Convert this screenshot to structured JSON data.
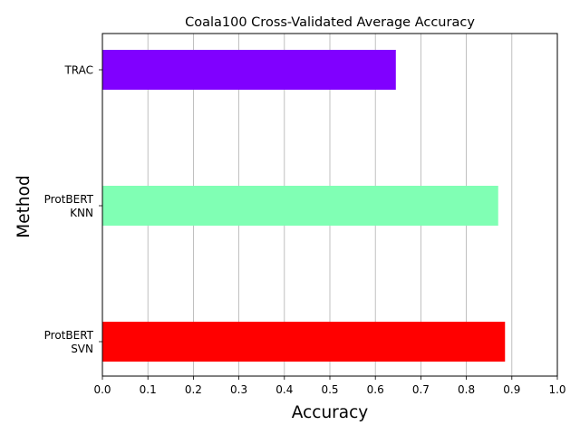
{
  "chart_data": {
    "type": "bar",
    "orientation": "horizontal",
    "title": "Coala100 Cross-Validated Average Accuracy",
    "xlabel": "Accuracy",
    "ylabel": "Method",
    "categories": [
      [
        "TRAC"
      ],
      [
        "ProtBERT",
        "KNN"
      ],
      [
        "ProtBERT",
        "SVN"
      ]
    ],
    "values": [
      0.645,
      0.87,
      0.885
    ],
    "colors": [
      "#8000ff",
      "#80ffb4",
      "#ff0000"
    ],
    "xlim": [
      0.0,
      1.0
    ],
    "xticks": [
      "0.0",
      "0.1",
      "0.2",
      "0.3",
      "0.4",
      "0.5",
      "0.6",
      "0.7",
      "0.8",
      "0.9",
      "1.0"
    ],
    "grid": "x"
  }
}
